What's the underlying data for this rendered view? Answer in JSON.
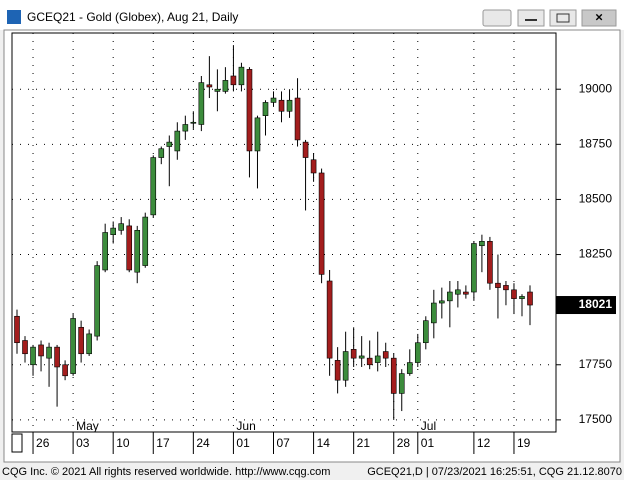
{
  "window": {
    "title": "GCEQ21 - Gold (Globex), Aug 21, Daily"
  },
  "footer": {
    "left": "CQG Inc. © 2021 All rights reserved worldwide. http://www.cqg.com",
    "right": "GCEQ21,D | 07/23/2021 16:25:51, CQG 21.12.8070"
  },
  "chart_data": {
    "type": "candlestick",
    "categories": [
      null,
      null,
      "26",
      null,
      null,
      null,
      null,
      "03",
      null,
      null,
      null,
      null,
      "10",
      null,
      null,
      null,
      null,
      "17",
      null,
      null,
      null,
      null,
      "24",
      null,
      null,
      null,
      null,
      "01",
      null,
      null,
      null,
      null,
      "07",
      null,
      null,
      null,
      null,
      "14",
      null,
      null,
      null,
      null,
      "21",
      null,
      null,
      null,
      null,
      "28",
      null,
      null,
      "01",
      null,
      null,
      null,
      null,
      null,
      null,
      "12",
      null,
      null,
      null,
      null,
      "19",
      null,
      null
    ],
    "month_categories": [
      null,
      null,
      null,
      null,
      null,
      null,
      null,
      "May",
      null,
      null,
      null,
      null,
      null,
      null,
      null,
      null,
      null,
      null,
      null,
      null,
      null,
      null,
      null,
      null,
      null,
      null,
      null,
      "Jun",
      null,
      null,
      null,
      null,
      null,
      null,
      null,
      null,
      null,
      null,
      null,
      null,
      null,
      null,
      null,
      null,
      null,
      null,
      null,
      null,
      null,
      null,
      "Jul",
      null,
      null,
      null,
      null,
      null,
      null,
      null,
      null,
      null,
      null,
      null,
      null,
      null,
      null
    ],
    "open": [
      17970,
      17860,
      17750,
      17840,
      17780,
      17830,
      17750,
      17710,
      17920,
      17800,
      17880,
      18180,
      18340,
      18360,
      18380,
      18170,
      18200,
      18430,
      18690,
      18740,
      18720,
      18810,
      18850,
      18840,
      19020,
      18990,
      18990,
      19060,
      19020,
      19090,
      18720,
      18880,
      18940,
      18950,
      18900,
      18960,
      18760,
      18680,
      18620,
      18130,
      17770,
      17680,
      17820,
      17780,
      17780,
      17760,
      17810,
      17780,
      17620,
      17710,
      17760,
      17850,
      17940,
      18030,
      18040,
      18070,
      18080,
      18080,
      18290,
      18310,
      18120,
      18110,
      18090,
      18050,
      18080
    ],
    "high": [
      18000,
      17880,
      17840,
      17860,
      17850,
      17840,
      17770,
      17980,
      17950,
      17910,
      18220,
      18390,
      18400,
      18420,
      18410,
      18380,
      18440,
      18700,
      18740,
      18790,
      18850,
      18880,
      18900,
      19060,
      19150,
      19090,
      19100,
      19200,
      19120,
      19100,
      18880,
      18950,
      18990,
      18990,
      19000,
      19050,
      18770,
      18710,
      18640,
      18180,
      17830,
      17900,
      17920,
      17880,
      17860,
      17900,
      17850,
      17800,
      17730,
      17820,
      17890,
      17970,
      18090,
      18100,
      18130,
      18130,
      18110,
      18310,
      18340,
      18330,
      18250,
      18130,
      18120,
      18070,
      18110
    ],
    "low": [
      17800,
      17760,
      17700,
      17720,
      17650,
      17560,
      17680,
      17700,
      17760,
      17790,
      17860,
      18170,
      18300,
      18340,
      18170,
      18120,
      18190,
      18420,
      18660,
      18560,
      18680,
      18770,
      18820,
      18810,
      18960,
      18900,
      18980,
      18990,
      18990,
      18600,
      18550,
      18790,
      18920,
      18850,
      18870,
      18740,
      18450,
      18580,
      18120,
      17700,
      17620,
      17650,
      17740,
      17740,
      17730,
      17720,
      17740,
      17500,
      17540,
      17700,
      17740,
      17820,
      17870,
      17960,
      17920,
      18010,
      18050,
      18040,
      18170,
      18090,
      17960,
      18020,
      17980,
      17970,
      17930
    ],
    "close": [
      17850,
      17800,
      17830,
      17790,
      17830,
      17740,
      17700,
      17960,
      17800,
      17890,
      18200,
      18350,
      18370,
      18390,
      18180,
      18360,
      18420,
      18690,
      18730,
      18760,
      18810,
      18840,
      18850,
      19030,
      19010,
      19000,
      19040,
      19020,
      19100,
      18720,
      18870,
      18940,
      18960,
      18900,
      18950,
      18770,
      18690,
      18620,
      18160,
      17780,
      17680,
      17810,
      17780,
      17790,
      17750,
      17790,
      17780,
      17620,
      17710,
      17760,
      17850,
      17950,
      18030,
      18040,
      18080,
      18090,
      18070,
      18300,
      18310,
      18120,
      18100,
      18090,
      18050,
      18060,
      18021
    ],
    "up_color": "#3c8c3c",
    "down_color": "#a31d1d",
    "ylim": [
      17445,
      19255
    ],
    "yticks": [
      17500,
      17750,
      18250,
      18500,
      18750,
      19000
    ],
    "last_price": 18021,
    "grid": true
  }
}
